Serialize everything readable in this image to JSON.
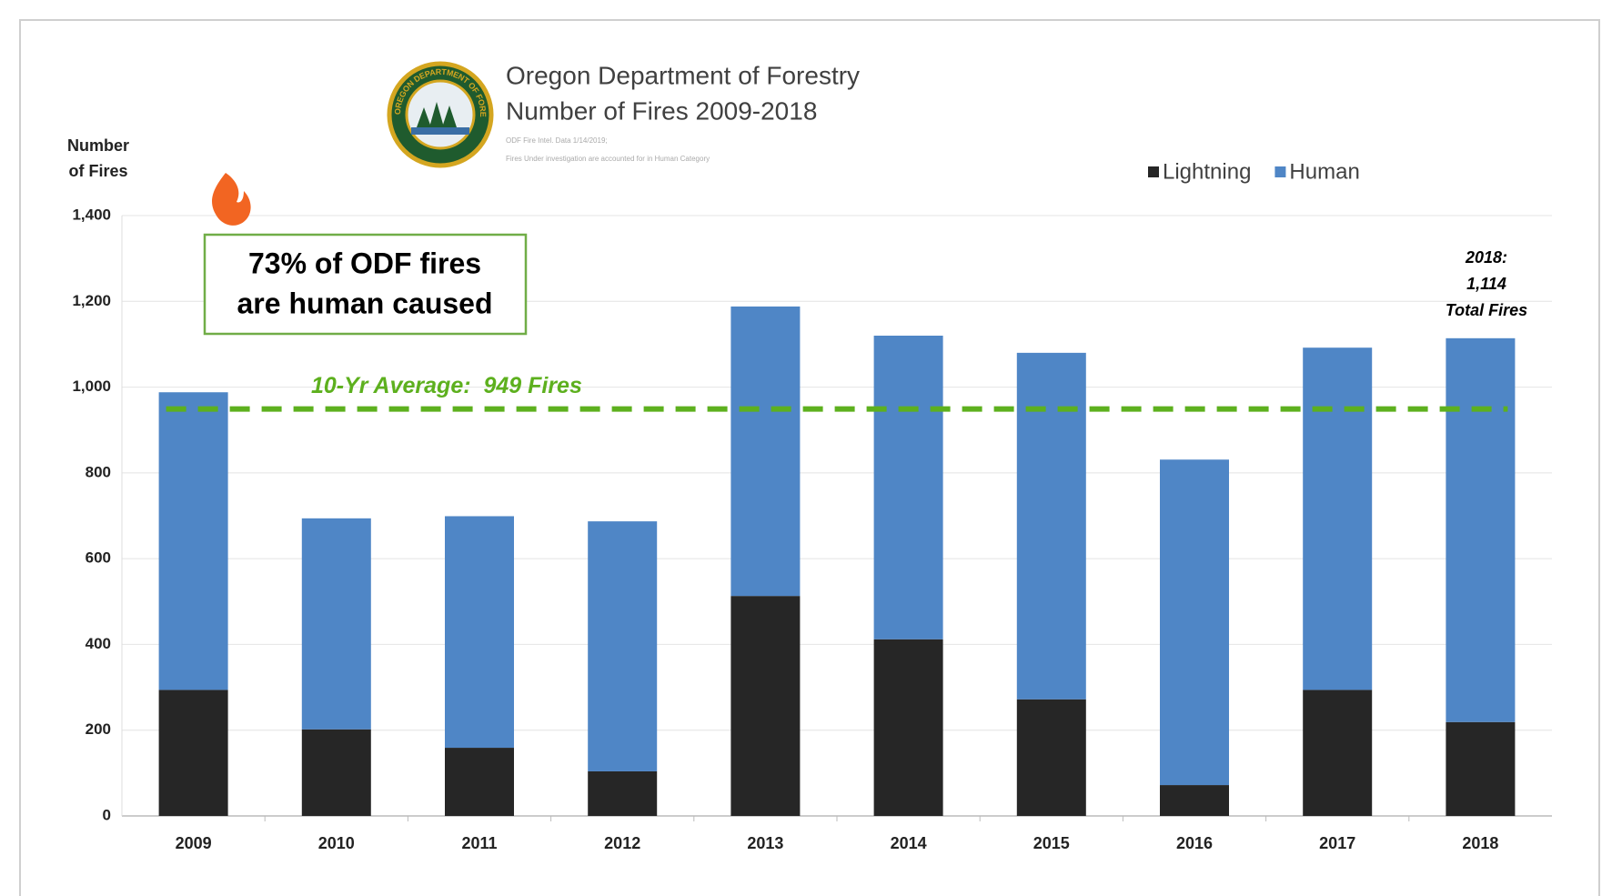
{
  "chart_data": {
    "type": "stacked_bar",
    "title": "Oregon Department of Forestry",
    "subtitle": "Number of Fires 2009-2018",
    "notes": [
      "ODF Fire Intel. Data 1/14/2019;",
      "Fires Under investigation are accounted for in Human Category"
    ],
    "logo_text": "OREGON DEPARTMENT OF FORESTRY",
    "y_label": [
      "Number",
      "of Fires"
    ],
    "categories": [
      "2009",
      "2010",
      "2011",
      "2012",
      "2013",
      "2014",
      "2015",
      "2016",
      "2017",
      "2018"
    ],
    "series": [
      {
        "name": "Lightning",
        "color": "#262626",
        "values": [
          294,
          202,
          159,
          104,
          513,
          412,
          272,
          72,
          294,
          219
        ]
      },
      {
        "name": "Human",
        "color": "#4f86c6",
        "values": [
          694,
          492,
          540,
          583,
          675,
          708,
          808,
          759,
          798,
          895
        ]
      }
    ],
    "ylim": [
      0,
      1400
    ],
    "yticks": [
      0,
      200,
      400,
      600,
      800,
      {
        "value": 1000,
        "label": "1,000"
      },
      {
        "value": 1200,
        "label": "1,200"
      },
      {
        "value": 1400,
        "label": "1,400"
      }
    ],
    "grid": true,
    "legend": "top-right",
    "average": {
      "value": 949,
      "label": "10-Yr Average:  949 Fires",
      "color": "#5db01e"
    },
    "callout": [
      "73% of ODF fires",
      "are human caused"
    ],
    "total_note": [
      "2018:",
      "1,114",
      "Total Fires"
    ]
  }
}
